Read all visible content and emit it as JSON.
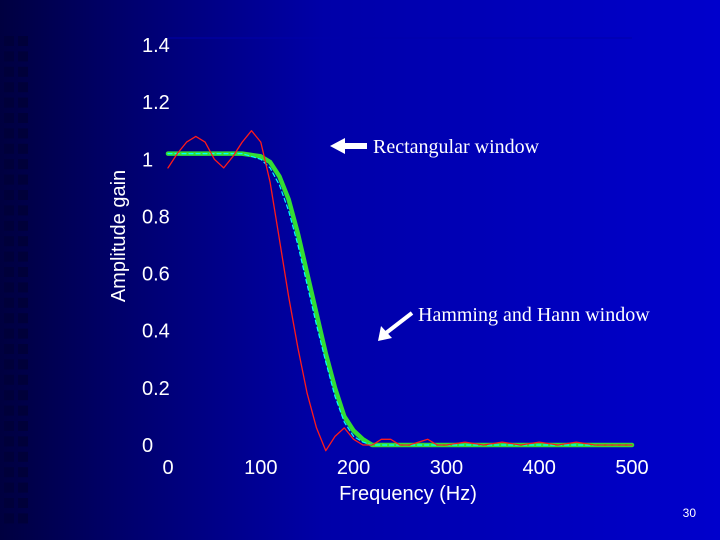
{
  "colors": {
    "background": "#0000cc",
    "rectangular": "#ff1a1a",
    "hamming": "#33dd33",
    "hann": "#00ffff",
    "text": "#ffffff"
  },
  "page_number": "30",
  "chart_data": {
    "type": "line",
    "xlabel": "Frequency (Hz)",
    "ylabel": "Amplitude gain",
    "xlim": [
      0,
      500
    ],
    "ylim": [
      0,
      1.4
    ],
    "x_ticks": [
      "0",
      "100",
      "200",
      "300",
      "400",
      "500"
    ],
    "x_tick_values": [
      0,
      100,
      200,
      300,
      400,
      500
    ],
    "y_ticks": [
      "0",
      "0.2",
      "0.4",
      "0.6",
      "0.8",
      "1",
      "1.2",
      "1.4"
    ],
    "y_tick_values": [
      0,
      0.2,
      0.4,
      0.6,
      0.8,
      1,
      1.2,
      1.4
    ],
    "grid": false,
    "annotations": [
      {
        "text": "Rectangular window",
        "arrow_to": [
          160,
          1.04
        ]
      },
      {
        "text": "Hamming and Hann window",
        "arrow_to": [
          225,
          0.37
        ]
      }
    ],
    "series": [
      {
        "key": "rectangular",
        "x": [
          0,
          10,
          20,
          30,
          40,
          50,
          60,
          70,
          80,
          90,
          100,
          110,
          120,
          130,
          140,
          150,
          160,
          170,
          180,
          190,
          200,
          210,
          220,
          230,
          240,
          250,
          260,
          270,
          280,
          290,
          300,
          320,
          340,
          360,
          380,
          400,
          420,
          440,
          460,
          480,
          500
        ],
        "y": [
          0.97,
          1.02,
          1.06,
          1.08,
          1.06,
          1.0,
          0.97,
          1.01,
          1.06,
          1.1,
          1.06,
          0.92,
          0.72,
          0.52,
          0.34,
          0.18,
          0.06,
          -0.02,
          0.03,
          0.06,
          0.02,
          0.0,
          0.0,
          0.02,
          0.02,
          0.0,
          0.0,
          0.01,
          0.02,
          0.0,
          0.0,
          0.01,
          0.0,
          0.01,
          0.0,
          0.01,
          0.0,
          0.01,
          0.0,
          0.0,
          0.0
        ]
      },
      {
        "key": "hamming",
        "x": [
          0,
          20,
          40,
          60,
          80,
          100,
          110,
          120,
          130,
          140,
          150,
          160,
          170,
          180,
          190,
          200,
          210,
          220,
          230,
          240,
          260,
          300,
          340,
          380,
          420,
          460,
          500
        ],
        "y": [
          1.02,
          1.02,
          1.02,
          1.02,
          1.02,
          1.01,
          0.99,
          0.94,
          0.86,
          0.74,
          0.6,
          0.46,
          0.32,
          0.2,
          0.1,
          0.05,
          0.02,
          0.0,
          0.0,
          0.0,
          0.0,
          0.0,
          0.0,
          0.0,
          0.0,
          0.0,
          0.0
        ]
      },
      {
        "key": "hann",
        "x": [
          0,
          20,
          40,
          60,
          80,
          100,
          110,
          120,
          130,
          140,
          150,
          160,
          170,
          180,
          190,
          200,
          210,
          220,
          230,
          240,
          260,
          300,
          340,
          380,
          420,
          460,
          500
        ],
        "y": [
          1.02,
          1.02,
          1.02,
          1.02,
          1.02,
          1.0,
          0.97,
          0.91,
          0.82,
          0.7,
          0.56,
          0.42,
          0.29,
          0.17,
          0.08,
          0.03,
          0.01,
          0.0,
          0.0,
          0.0,
          0.0,
          0.0,
          0.0,
          0.0,
          0.0,
          0.0,
          0.0
        ]
      }
    ]
  }
}
